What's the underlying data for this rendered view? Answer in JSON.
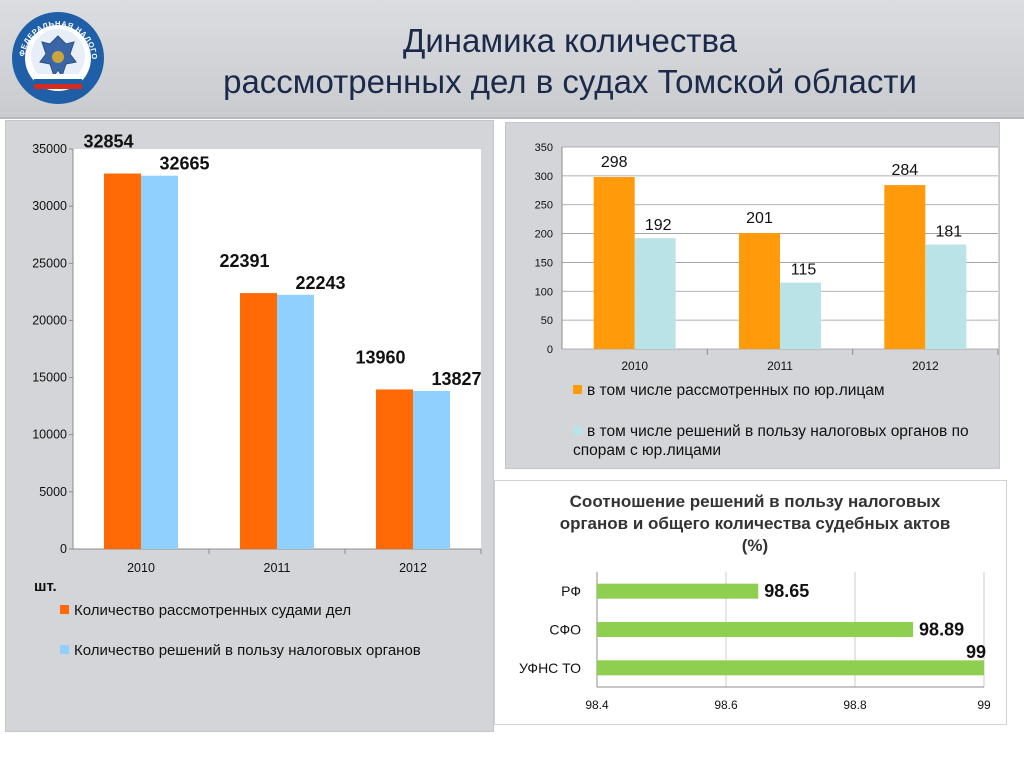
{
  "header": {
    "title_line1": "Динамика количества",
    "title_line2": "рассмотренных дел в судах Томской области",
    "logo_text": "ФЕДЕРАЛЬНАЯ НАЛОГОВАЯ СЛУЖБА"
  },
  "colors": {
    "orange_dark": "#ff6a06",
    "light_blue": "#8fd0ff",
    "orange": "#ff9a0a",
    "light_cyan": "#b9e3e6",
    "green": "#8ecf4f"
  },
  "left_chart": {
    "unit_label": "шт.",
    "legend": [
      "Количество рассмотренных судами дел",
      "Количество решений в пользу налоговых органов"
    ]
  },
  "top_right_chart": {
    "legend": [
      "в том числе рассмотренных по юр.лицам",
      "в том числе решений в пользу налоговых органов по спорам с юр.лицами"
    ]
  },
  "bottom_right_chart": {
    "title": "Соотношение решений в пользу налоговых органов и общего количества судебных актов (%)"
  },
  "chart_data": [
    {
      "type": "bar",
      "categories": [
        "2010",
        "2011",
        "2012"
      ],
      "series": [
        {
          "name": "Количество рассмотренных судами дел",
          "values": [
            32854,
            22391,
            13960
          ]
        },
        {
          "name": "Количество решений в пользу налоговых органов",
          "values": [
            32665,
            22243,
            13827
          ]
        }
      ],
      "ylim": [
        0,
        35000
      ],
      "yticks": [
        0,
        5000,
        10000,
        15000,
        20000,
        25000,
        30000,
        35000
      ],
      "ylabel": "шт.",
      "grid": false,
      "legend_position": "bottom"
    },
    {
      "type": "bar",
      "categories": [
        "2010",
        "2011",
        "2012"
      ],
      "series": [
        {
          "name": "в том числе рассмотренных по юр.лицам",
          "values": [
            298,
            201,
            284
          ]
        },
        {
          "name": "в том числе решений в пользу налоговых органов по спорам с юр.лицами",
          "values": [
            192,
            115,
            181
          ]
        }
      ],
      "ylim": [
        0,
        350
      ],
      "yticks": [
        0,
        50,
        100,
        150,
        200,
        250,
        300,
        350
      ],
      "grid": true,
      "legend_position": "bottom"
    },
    {
      "type": "bar",
      "orientation": "horizontal",
      "title": "Соотношение решений в пользу налоговых органов и общего количества судебных актов (%)",
      "categories": [
        "РФ",
        "СФО",
        "УФНС ТО"
      ],
      "values": [
        98.65,
        98.89,
        99
      ],
      "value_labels": [
        "98.65",
        "98.89",
        "99"
      ],
      "xlim": [
        98.4,
        99
      ],
      "xticks": [
        98.4,
        98.6,
        98.8,
        99
      ],
      "grid": true
    }
  ]
}
